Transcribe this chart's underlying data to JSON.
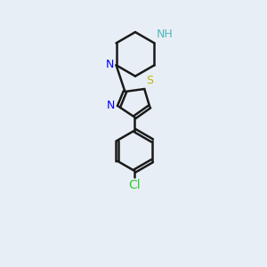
{
  "bg_color": "#e8eef5",
  "bond_color": "#1a1a1a",
  "N_color": "#0000ff",
  "NH_color": "#4db8b8",
  "S_color": "#b8b800",
  "Cl_color": "#33cc33",
  "line_width": 1.8,
  "font_size_atom": 9,
  "xlim": [
    0,
    10
  ],
  "ylim": [
    0,
    15
  ]
}
